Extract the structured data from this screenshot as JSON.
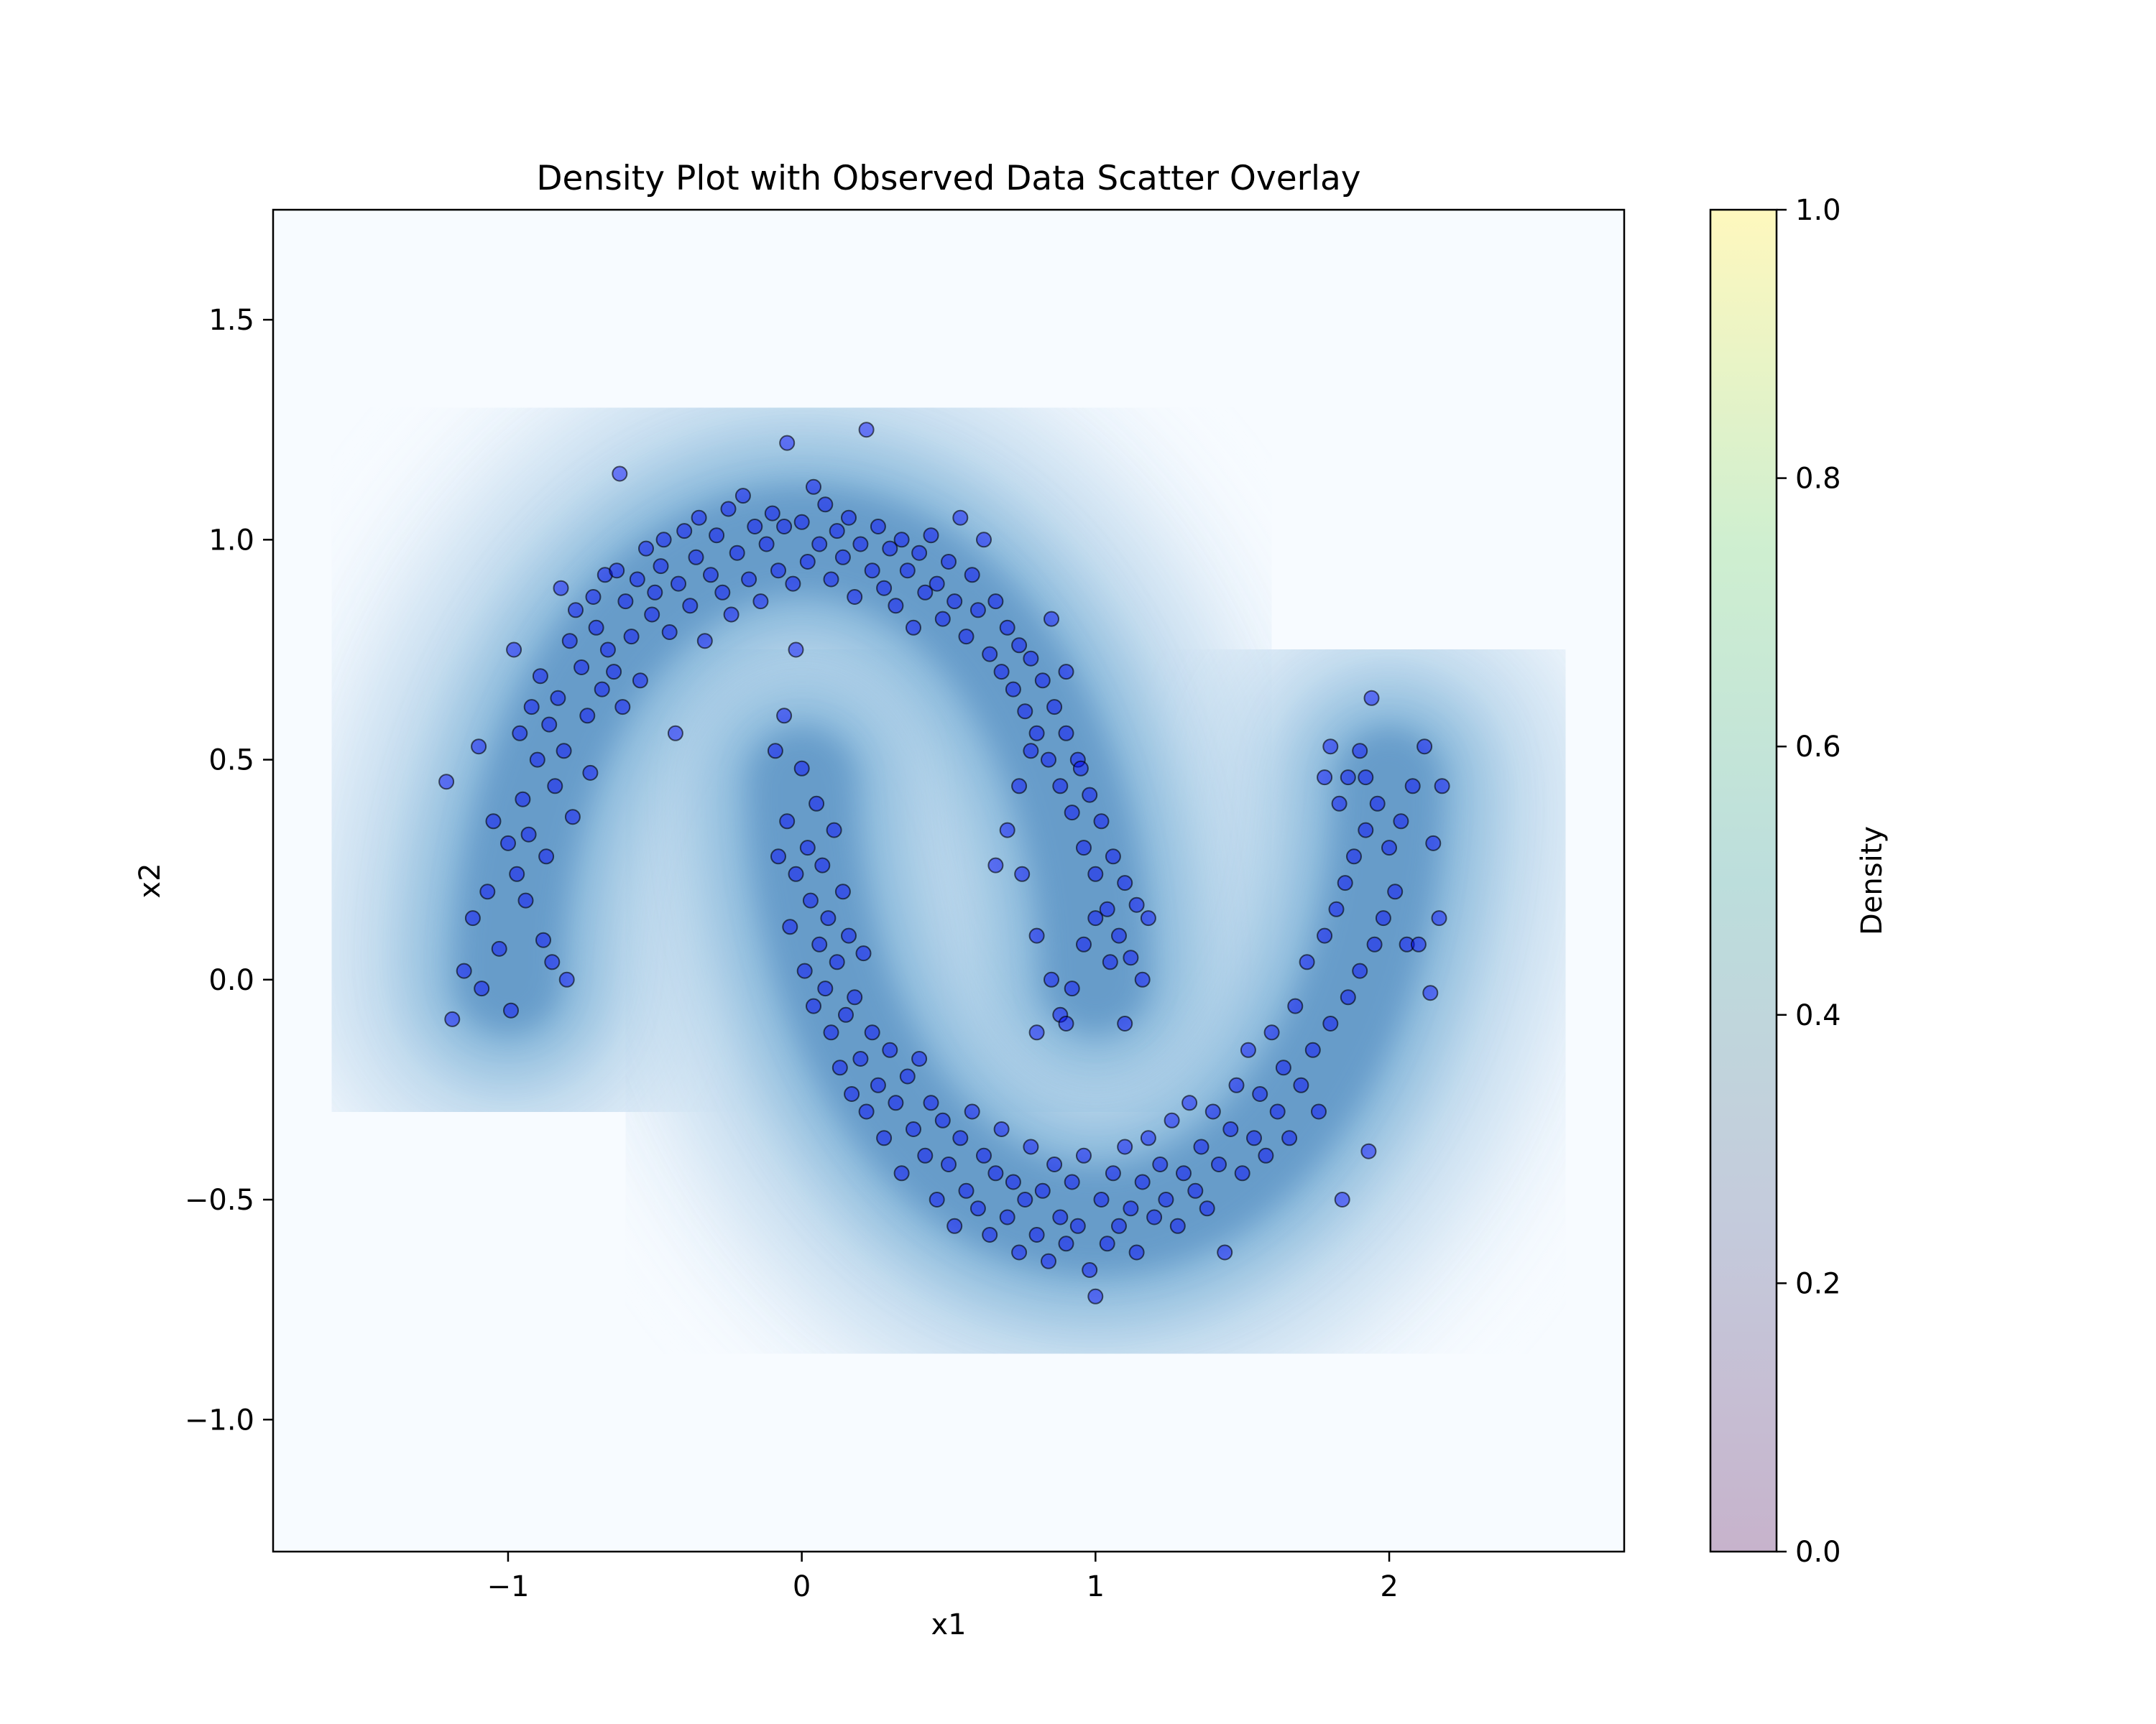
{
  "chart_data": {
    "type": "scatter",
    "title": "Density Plot with Observed Data Scatter Overlay",
    "xlabel": "x1",
    "ylabel": "x2",
    "xlim": [
      -1.8,
      2.8
    ],
    "ylim": [
      -1.3,
      1.75
    ],
    "x_ticks": [
      -1,
      0,
      1,
      2
    ],
    "x_tick_labels": [
      "−1",
      "0",
      "1",
      "2"
    ],
    "y_ticks": [
      -1.0,
      -0.5,
      0.0,
      0.5,
      1.0,
      1.5
    ],
    "y_tick_labels": [
      "−1.0",
      "−0.5",
      "0.0",
      "0.5",
      "1.0",
      "1.5"
    ],
    "grid": false,
    "background_layer": {
      "type": "density-contour",
      "colormap": "Blues",
      "description_shape": "two interleaved half moons"
    },
    "colorbar": {
      "label": "Density",
      "range": [
        0.0,
        1.0
      ],
      "ticks": [
        0.0,
        0.2,
        0.4,
        0.6,
        0.8,
        1.0
      ],
      "tick_labels": [
        "0.0",
        "0.2",
        "0.4",
        "0.6",
        "0.8",
        "1.0"
      ],
      "colormap": "viridis",
      "alpha": 0.3
    },
    "series": [
      {
        "style": {
          "fill": "#0000ff",
          "edge": "#000000",
          "alpha": 0.45
        },
        "points": [
          [
            -1.21,
            0.45
          ],
          [
            -1.19,
            -0.09
          ],
          [
            -1.15,
            0.02
          ],
          [
            -1.12,
            0.14
          ],
          [
            -1.1,
            0.53
          ],
          [
            -1.09,
            -0.02
          ],
          [
            -1.07,
            0.2
          ],
          [
            -1.05,
            0.36
          ],
          [
            -1.03,
            0.07
          ],
          [
            -1.0,
            0.31
          ],
          [
            -0.99,
            -0.07
          ],
          [
            -0.98,
            0.75
          ],
          [
            -0.97,
            0.24
          ],
          [
            -0.96,
            0.56
          ],
          [
            -0.95,
            0.41
          ],
          [
            -0.94,
            0.18
          ],
          [
            -0.93,
            0.33
          ],
          [
            -0.92,
            0.62
          ],
          [
            -0.9,
            0.5
          ],
          [
            -0.89,
            0.69
          ],
          [
            -0.88,
            0.09
          ],
          [
            -0.87,
            0.28
          ],
          [
            -0.86,
            0.58
          ],
          [
            -0.85,
            0.04
          ],
          [
            -0.84,
            0.44
          ],
          [
            -0.83,
            0.64
          ],
          [
            -0.82,
            0.89
          ],
          [
            -0.81,
            0.52
          ],
          [
            -0.8,
            0.0
          ],
          [
            -0.79,
            0.77
          ],
          [
            -0.78,
            0.37
          ],
          [
            -0.77,
            0.84
          ],
          [
            -0.75,
            0.71
          ],
          [
            -0.73,
            0.6
          ],
          [
            -0.72,
            0.47
          ],
          [
            -0.71,
            0.87
          ],
          [
            -0.7,
            0.8
          ],
          [
            -0.68,
            0.66
          ],
          [
            -0.67,
            0.92
          ],
          [
            -0.66,
            0.75
          ],
          [
            -0.64,
            0.7
          ],
          [
            -0.63,
            0.93
          ],
          [
            -0.62,
            1.15
          ],
          [
            -0.61,
            0.62
          ],
          [
            -0.6,
            0.86
          ],
          [
            -0.58,
            0.78
          ],
          [
            -0.56,
            0.91
          ],
          [
            -0.55,
            0.68
          ],
          [
            -0.53,
            0.98
          ],
          [
            -0.51,
            0.83
          ],
          [
            -0.5,
            0.88
          ],
          [
            -0.48,
            0.94
          ],
          [
            -0.47,
            1.0
          ],
          [
            -0.45,
            0.79
          ],
          [
            -0.43,
            0.56
          ],
          [
            -0.42,
            0.9
          ],
          [
            -0.4,
            1.02
          ],
          [
            -0.38,
            0.85
          ],
          [
            -0.36,
            0.96
          ],
          [
            -0.35,
            1.05
          ],
          [
            -0.33,
            0.77
          ],
          [
            -0.31,
            0.92
          ],
          [
            -0.29,
            1.01
          ],
          [
            -0.27,
            0.88
          ],
          [
            -0.25,
            1.07
          ],
          [
            -0.24,
            0.83
          ],
          [
            -0.22,
            0.97
          ],
          [
            -0.2,
            1.1
          ],
          [
            -0.18,
            0.91
          ],
          [
            -0.16,
            1.03
          ],
          [
            -0.14,
            0.86
          ],
          [
            -0.12,
            0.99
          ],
          [
            -0.1,
            1.06
          ],
          [
            -0.08,
            0.93
          ],
          [
            -0.06,
            1.03
          ],
          [
            -0.05,
            1.22
          ],
          [
            -0.03,
            0.9
          ],
          [
            -0.02,
            0.75
          ],
          [
            0.0,
            1.04
          ],
          [
            0.02,
            0.95
          ],
          [
            0.04,
            1.12
          ],
          [
            0.06,
            0.99
          ],
          [
            0.08,
            1.08
          ],
          [
            0.1,
            0.91
          ],
          [
            0.12,
            1.02
          ],
          [
            0.14,
            0.96
          ],
          [
            0.16,
            1.05
          ],
          [
            0.18,
            0.87
          ],
          [
            0.2,
            0.99
          ],
          [
            0.22,
            1.25
          ],
          [
            0.24,
            0.93
          ],
          [
            0.26,
            1.03
          ],
          [
            0.28,
            0.89
          ],
          [
            0.3,
            0.98
          ],
          [
            0.32,
            0.85
          ],
          [
            0.34,
            1.0
          ],
          [
            0.36,
            0.93
          ],
          [
            0.38,
            0.8
          ],
          [
            0.4,
            0.97
          ],
          [
            0.42,
            0.88
          ],
          [
            0.44,
            1.01
          ],
          [
            0.46,
            0.9
          ],
          [
            0.48,
            0.82
          ],
          [
            0.5,
            0.95
          ],
          [
            0.52,
            0.86
          ],
          [
            0.54,
            1.05
          ],
          [
            0.56,
            0.78
          ],
          [
            0.58,
            0.92
          ],
          [
            0.6,
            0.84
          ],
          [
            0.62,
            1.0
          ],
          [
            0.64,
            0.74
          ],
          [
            0.66,
            0.86
          ],
          [
            0.68,
            0.7
          ],
          [
            0.7,
            0.8
          ],
          [
            0.72,
            0.66
          ],
          [
            0.74,
            0.76
          ],
          [
            0.76,
            0.61
          ],
          [
            0.78,
            0.73
          ],
          [
            0.8,
            0.56
          ],
          [
            0.82,
            0.68
          ],
          [
            0.84,
            0.5
          ],
          [
            0.86,
            0.62
          ],
          [
            0.88,
            0.44
          ],
          [
            0.9,
            0.56
          ],
          [
            0.92,
            0.38
          ],
          [
            0.94,
            0.5
          ],
          [
            0.96,
            0.3
          ],
          [
            0.98,
            0.42
          ],
          [
            1.0,
            0.24
          ],
          [
            1.02,
            0.36
          ],
          [
            1.04,
            0.16
          ],
          [
            1.06,
            0.28
          ],
          [
            1.08,
            0.1
          ],
          [
            1.1,
            0.22
          ],
          [
            1.12,
            0.05
          ],
          [
            1.14,
            0.17
          ],
          [
            1.16,
            0.0
          ],
          [
            1.18,
            0.14
          ],
          [
            -0.09,
            0.52
          ],
          [
            -0.08,
            0.28
          ],
          [
            -0.06,
            0.6
          ],
          [
            -0.05,
            0.36
          ],
          [
            -0.04,
            0.12
          ],
          [
            -0.02,
            0.24
          ],
          [
            0.0,
            0.48
          ],
          [
            0.01,
            0.02
          ],
          [
            0.02,
            0.3
          ],
          [
            0.03,
            0.18
          ],
          [
            0.04,
            -0.06
          ],
          [
            0.05,
            0.4
          ],
          [
            0.06,
            0.08
          ],
          [
            0.07,
            0.26
          ],
          [
            0.08,
            -0.02
          ],
          [
            0.09,
            0.14
          ],
          [
            0.1,
            -0.12
          ],
          [
            0.11,
            0.34
          ],
          [
            0.12,
            0.04
          ],
          [
            0.13,
            -0.2
          ],
          [
            0.14,
            0.2
          ],
          [
            0.15,
            -0.08
          ],
          [
            0.16,
            0.1
          ],
          [
            0.17,
            -0.26
          ],
          [
            0.18,
            -0.04
          ],
          [
            0.2,
            -0.18
          ],
          [
            0.21,
            0.06
          ],
          [
            0.22,
            -0.3
          ],
          [
            0.24,
            -0.12
          ],
          [
            0.26,
            -0.24
          ],
          [
            0.28,
            -0.36
          ],
          [
            0.3,
            -0.16
          ],
          [
            0.32,
            -0.28
          ],
          [
            0.34,
            -0.44
          ],
          [
            0.36,
            -0.22
          ],
          [
            0.38,
            -0.34
          ],
          [
            0.4,
            -0.18
          ],
          [
            0.42,
            -0.4
          ],
          [
            0.44,
            -0.28
          ],
          [
            0.46,
            -0.5
          ],
          [
            0.48,
            -0.32
          ],
          [
            0.5,
            -0.42
          ],
          [
            0.52,
            -0.56
          ],
          [
            0.54,
            -0.36
          ],
          [
            0.56,
            -0.48
          ],
          [
            0.58,
            -0.3
          ],
          [
            0.6,
            -0.52
          ],
          [
            0.62,
            -0.4
          ],
          [
            0.64,
            -0.58
          ],
          [
            0.66,
            -0.44
          ],
          [
            0.68,
            -0.34
          ],
          [
            0.7,
            -0.54
          ],
          [
            0.72,
            -0.46
          ],
          [
            0.74,
            -0.62
          ],
          [
            0.76,
            -0.5
          ],
          [
            0.78,
            -0.38
          ],
          [
            0.8,
            -0.58
          ],
          [
            0.82,
            -0.48
          ],
          [
            0.84,
            -0.64
          ],
          [
            0.86,
            -0.42
          ],
          [
            0.88,
            -0.54
          ],
          [
            0.9,
            -0.6
          ],
          [
            0.92,
            -0.46
          ],
          [
            0.94,
            -0.56
          ],
          [
            0.96,
            -0.4
          ],
          [
            0.98,
            -0.66
          ],
          [
            1.0,
            -0.72
          ],
          [
            1.02,
            -0.5
          ],
          [
            1.04,
            -0.6
          ],
          [
            1.06,
            -0.44
          ],
          [
            1.08,
            -0.56
          ],
          [
            1.1,
            -0.38
          ],
          [
            1.12,
            -0.52
          ],
          [
            1.14,
            -0.62
          ],
          [
            1.16,
            -0.46
          ],
          [
            1.18,
            -0.36
          ],
          [
            1.2,
            -0.54
          ],
          [
            1.22,
            -0.42
          ],
          [
            1.24,
            -0.5
          ],
          [
            1.26,
            -0.32
          ],
          [
            1.28,
            -0.56
          ],
          [
            1.3,
            -0.44
          ],
          [
            1.32,
            -0.28
          ],
          [
            1.34,
            -0.48
          ],
          [
            1.36,
            -0.38
          ],
          [
            1.38,
            -0.52
          ],
          [
            1.4,
            -0.3
          ],
          [
            1.42,
            -0.42
          ],
          [
            1.44,
            -0.62
          ],
          [
            1.46,
            -0.34
          ],
          [
            1.48,
            -0.24
          ],
          [
            1.5,
            -0.44
          ],
          [
            1.52,
            -0.16
          ],
          [
            1.54,
            -0.36
          ],
          [
            1.56,
            -0.26
          ],
          [
            1.58,
            -0.4
          ],
          [
            1.6,
            -0.12
          ],
          [
            1.62,
            -0.3
          ],
          [
            1.64,
            -0.2
          ],
          [
            1.66,
            -0.36
          ],
          [
            1.68,
            -0.06
          ],
          [
            1.7,
            -0.24
          ],
          [
            1.72,
            0.04
          ],
          [
            1.74,
            -0.16
          ],
          [
            1.76,
            -0.3
          ],
          [
            1.78,
            0.1
          ],
          [
            1.8,
            -0.1
          ],
          [
            1.82,
            0.16
          ],
          [
            1.84,
            -0.5
          ],
          [
            1.85,
            0.22
          ],
          [
            1.86,
            -0.04
          ],
          [
            1.88,
            0.28
          ],
          [
            1.9,
            0.02
          ],
          [
            1.92,
            0.34
          ],
          [
            1.93,
            -0.39
          ],
          [
            1.94,
            0.64
          ],
          [
            1.95,
            0.08
          ],
          [
            1.96,
            0.4
          ],
          [
            1.98,
            0.14
          ],
          [
            2.0,
            0.3
          ],
          [
            2.02,
            0.2
          ],
          [
            2.04,
            0.36
          ],
          [
            2.06,
            0.08
          ],
          [
            2.08,
            0.44
          ],
          [
            2.1,
            0.08
          ],
          [
            2.12,
            0.53
          ],
          [
            2.14,
            -0.03
          ],
          [
            2.15,
            0.31
          ],
          [
            2.17,
            0.14
          ],
          [
            2.18,
            0.44
          ],
          [
            0.85,
            0.82
          ],
          [
            0.9,
            0.7
          ],
          [
            0.95,
            0.48
          ],
          [
            1.0,
            0.14
          ],
          [
            1.05,
            0.04
          ],
          [
            1.1,
            -0.1
          ],
          [
            0.75,
            0.24
          ],
          [
            0.8,
            0.1
          ],
          [
            0.85,
            0.0
          ],
          [
            0.88,
            -0.08
          ],
          [
            0.92,
            -0.02
          ],
          [
            0.96,
            0.08
          ],
          [
            0.7,
            0.34
          ],
          [
            0.74,
            0.44
          ],
          [
            0.78,
            0.52
          ],
          [
            0.66,
            0.26
          ],
          [
            0.8,
            -0.12
          ],
          [
            0.9,
            -0.1
          ],
          [
            1.78,
            0.46
          ],
          [
            1.8,
            0.53
          ],
          [
            1.83,
            0.4
          ],
          [
            1.86,
            0.46
          ],
          [
            1.9,
            0.52
          ],
          [
            1.92,
            0.46
          ]
        ]
      }
    ]
  }
}
